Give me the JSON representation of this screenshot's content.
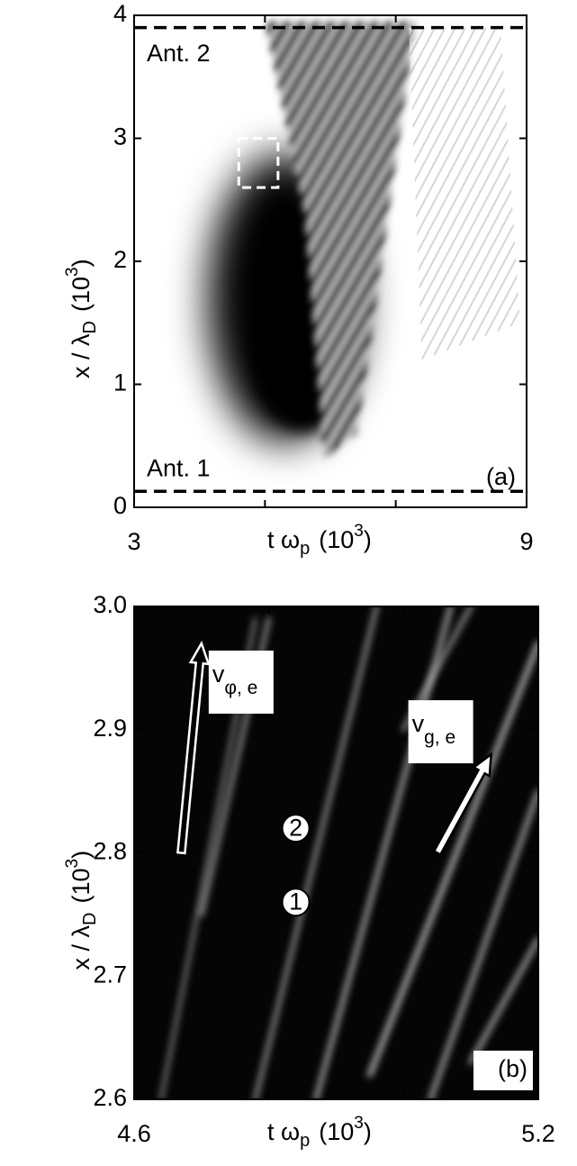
{
  "chart_data": [
    {
      "type": "heatmap",
      "colormap": "gray",
      "xlabel": [
        "t ω",
        "p",
        "(10",
        "3",
        ")"
      ],
      "ylabel": [
        "x / λ",
        "D",
        "(10",
        "3",
        ")"
      ],
      "xlim": [
        3,
        9
      ],
      "xticks": [
        3,
        9
      ],
      "minor_xticks": [
        5,
        7
      ],
      "ylim": [
        0,
        4
      ],
      "yticks": [
        0,
        1,
        2,
        3,
        4
      ],
      "panel_label": "(a)",
      "reference_lines": [
        {
          "y": 3.9,
          "label": "Ant. 2"
        },
        {
          "y": 0.13,
          "label": "Ant. 1"
        }
      ],
      "inset_box": {
        "x": [
          4.6,
          5.2
        ],
        "y": [
          2.6,
          3.0
        ]
      }
    },
    {
      "type": "heatmap",
      "colormap": "gray",
      "xlabel": [
        "t ω",
        "p",
        "(10",
        "3",
        ")"
      ],
      "ylabel": [
        "x / λ",
        "D",
        "(10",
        "3",
        ")"
      ],
      "xlim": [
        4.6,
        5.2
      ],
      "xticks": [
        4.6,
        5.2
      ],
      "minor_xticks": [
        4.8,
        5.0
      ],
      "ylim": [
        2.6,
        3.0
      ],
      "yticks": [
        2.6,
        2.7,
        2.8,
        2.9,
        {
          "value": 3,
          "label": "3.0"
        }
      ],
      "panel_label": "(b)",
      "arrows": [
        {
          "label": [
            "v",
            "φ, e"
          ],
          "from": [
            4.67,
            2.8
          ],
          "to": [
            4.7,
            2.97
          ],
          "color": "#000000"
        },
        {
          "label": [
            "v",
            "g, e"
          ],
          "from": [
            5.05,
            2.8
          ],
          "to": [
            5.13,
            2.88
          ],
          "color": "#ffffff"
        }
      ],
      "markers": [
        {
          "label": "2",
          "x": 4.84,
          "y": 2.82
        },
        {
          "label": "1",
          "x": 4.84,
          "y": 2.76
        }
      ]
    }
  ]
}
